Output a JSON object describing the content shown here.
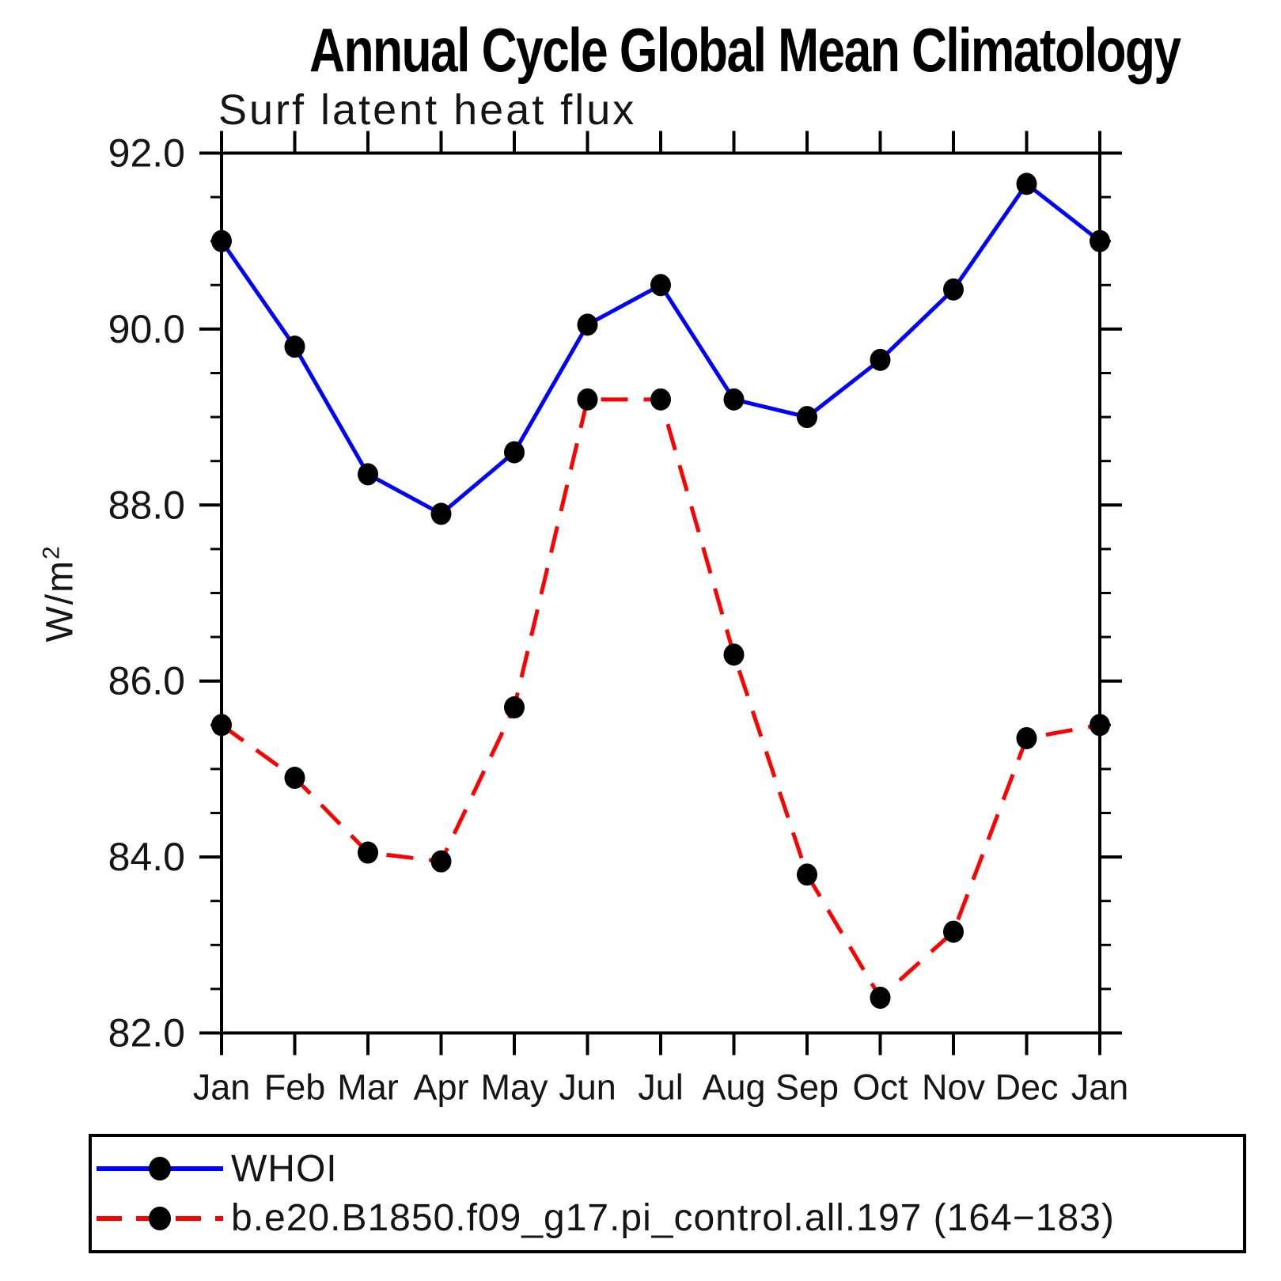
{
  "title": "Annual Cycle Global Mean Climatology",
  "subtitle": "Surf latent heat flux",
  "y_axis": {
    "label_base": "W/m",
    "label_sup": "2"
  },
  "legend": {
    "position": "bottom",
    "entries": [
      {
        "label": "WHOI",
        "color": "#0000ff",
        "line_style": "solid",
        "marker": "filled-circle",
        "marker_color": "#000000"
      },
      {
        "label": "b.e20.B1850.f09_g17.pi_control.all.197 (164−183)",
        "color": "#ff0000",
        "line_style": "dashed",
        "marker": "filled-circle",
        "marker_color": "#000000"
      }
    ]
  },
  "chart_data": {
    "type": "line",
    "title": "Annual Cycle Global Mean Climatology",
    "subtitle": "Surf latent heat flux",
    "ylabel": "W/m^2",
    "categories": [
      "Jan",
      "Feb",
      "Mar",
      "Apr",
      "May",
      "Jun",
      "Jul",
      "Aug",
      "Sep",
      "Oct",
      "Nov",
      "Dec",
      "Jan"
    ],
    "ylim": [
      82.0,
      92.0
    ],
    "ytick_major": [
      82.0,
      84.0,
      86.0,
      88.0,
      90.0,
      92.0
    ],
    "ytick_minor_step": 0.5,
    "grid": false,
    "legend_position": "bottom",
    "series": [
      {
        "name": "WHOI",
        "color": "#0000ff",
        "style": "solid",
        "marker": "filled-circle",
        "values": [
          91.0,
          89.8,
          88.35,
          87.9,
          88.6,
          90.05,
          90.5,
          89.2,
          89.0,
          89.65,
          90.45,
          91.65,
          91.0
        ]
      },
      {
        "name": "b.e20.B1850.f09_g17.pi_control.all.197 (164−183)",
        "color": "#ff0000",
        "style": "dashed",
        "marker": "filled-circle",
        "values": [
          85.5,
          84.9,
          84.05,
          83.95,
          85.7,
          89.2,
          89.2,
          86.3,
          83.8,
          82.4,
          83.15,
          85.35,
          85.5
        ]
      }
    ]
  }
}
